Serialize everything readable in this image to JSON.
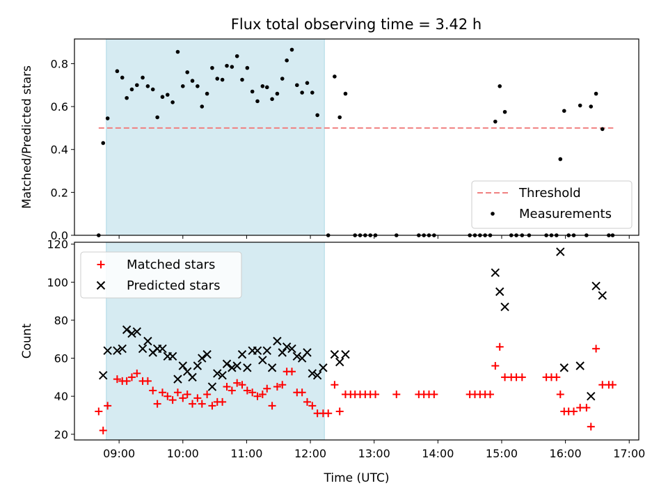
{
  "chart_data": [
    {
      "type": "scatter",
      "title": "Flux total observing time = 3.42 h",
      "xlabel": "",
      "ylabel": "Matched/Predicted stars",
      "xlim": [
        8.3,
        17.15
      ],
      "ylim": [
        0,
        0.915
      ],
      "yticks": [
        0.0,
        0.2,
        0.4,
        0.6,
        0.8
      ],
      "shaded_span": [
        8.8,
        12.22
      ],
      "shaded_color": "#add8e6",
      "legend_position": "lower right",
      "threshold": {
        "name": "Threshold",
        "y": 0.5,
        "x_range": [
          8.68,
          16.75
        ],
        "color": "#f08080"
      },
      "series": [
        {
          "name": "Measurements",
          "color": "#000000",
          "marker": "dot",
          "points": [
            [
              8.68,
              0.0
            ],
            [
              8.75,
              0.43
            ],
            [
              8.82,
              0.545
            ],
            [
              8.97,
              0.765
            ],
            [
              9.05,
              0.735
            ],
            [
              9.12,
              0.64
            ],
            [
              9.2,
              0.68
            ],
            [
              9.28,
              0.7
            ],
            [
              9.37,
              0.735
            ],
            [
              9.45,
              0.695
            ],
            [
              9.53,
              0.68
            ],
            [
              9.6,
              0.55
            ],
            [
              9.68,
              0.645
            ],
            [
              9.76,
              0.655
            ],
            [
              9.84,
              0.62
            ],
            [
              9.92,
              0.855
            ],
            [
              10.0,
              0.695
            ],
            [
              10.07,
              0.76
            ],
            [
              10.15,
              0.72
            ],
            [
              10.23,
              0.695
            ],
            [
              10.3,
              0.6
            ],
            [
              10.38,
              0.66
            ],
            [
              10.46,
              0.78
            ],
            [
              10.54,
              0.73
            ],
            [
              10.62,
              0.725
            ],
            [
              10.69,
              0.79
            ],
            [
              10.77,
              0.785
            ],
            [
              10.85,
              0.835
            ],
            [
              10.93,
              0.725
            ],
            [
              11.01,
              0.78
            ],
            [
              11.09,
              0.67
            ],
            [
              11.17,
              0.625
            ],
            [
              11.25,
              0.695
            ],
            [
              11.32,
              0.69
            ],
            [
              11.4,
              0.635
            ],
            [
              11.48,
              0.66
            ],
            [
              11.56,
              0.73
            ],
            [
              11.63,
              0.815
            ],
            [
              11.71,
              0.865
            ],
            [
              11.79,
              0.7
            ],
            [
              11.87,
              0.665
            ],
            [
              11.95,
              0.71
            ],
            [
              12.03,
              0.665
            ],
            [
              12.11,
              0.56
            ],
            [
              12.28,
              0.0
            ],
            [
              12.38,
              0.74
            ],
            [
              12.46,
              0.55
            ],
            [
              12.55,
              0.66
            ],
            [
              12.7,
              0.0
            ],
            [
              12.78,
              0.0
            ],
            [
              12.86,
              0.0
            ],
            [
              12.94,
              0.0
            ],
            [
              13.02,
              0.0
            ],
            [
              13.35,
              0.0
            ],
            [
              13.7,
              0.0
            ],
            [
              13.78,
              0.0
            ],
            [
              13.86,
              0.0
            ],
            [
              13.94,
              0.0
            ],
            [
              14.5,
              0.0
            ],
            [
              14.58,
              0.0
            ],
            [
              14.66,
              0.0
            ],
            [
              14.74,
              0.0
            ],
            [
              14.82,
              0.0
            ],
            [
              14.9,
              0.53
            ],
            [
              14.97,
              0.695
            ],
            [
              15.05,
              0.575
            ],
            [
              15.15,
              0.0
            ],
            [
              15.23,
              0.0
            ],
            [
              15.32,
              0.0
            ],
            [
              15.43,
              0.0
            ],
            [
              15.7,
              0.0
            ],
            [
              15.78,
              0.0
            ],
            [
              15.86,
              0.0
            ],
            [
              15.92,
              0.355
            ],
            [
              15.98,
              0.58
            ],
            [
              16.05,
              0.0
            ],
            [
              16.13,
              0.0
            ],
            [
              16.23,
              0.605
            ],
            [
              16.33,
              0.0
            ],
            [
              16.4,
              0.6
            ],
            [
              16.48,
              0.66
            ],
            [
              16.58,
              0.495
            ],
            [
              16.68,
              0.0
            ],
            [
              16.74,
              0.0
            ]
          ]
        }
      ]
    },
    {
      "type": "scatter",
      "title": "",
      "xlabel": "Time (UTC)",
      "ylabel": "Count",
      "xlim": [
        8.3,
        17.15
      ],
      "ylim": [
        17,
        121
      ],
      "yticks": [
        20,
        40,
        60,
        80,
        100,
        120
      ],
      "xticks": [
        9,
        10,
        11,
        12,
        13,
        14,
        15,
        16,
        17
      ],
      "xticklabels": [
        "09:00",
        "10:00",
        "11:00",
        "12:00",
        "13:00",
        "14:00",
        "15:00",
        "16:00",
        "17:00"
      ],
      "shaded_span": [
        8.8,
        12.22
      ],
      "shaded_color": "#add8e6",
      "legend_position": "upper left",
      "series": [
        {
          "name": "Matched stars",
          "color": "#ff0000",
          "marker": "plus",
          "points": [
            [
              8.68,
              32
            ],
            [
              8.75,
              22
            ],
            [
              8.82,
              35
            ],
            [
              8.97,
              49
            ],
            [
              9.05,
              48
            ],
            [
              9.12,
              48
            ],
            [
              9.2,
              50
            ],
            [
              9.28,
              52
            ],
            [
              9.37,
              48
            ],
            [
              9.45,
              48
            ],
            [
              9.53,
              43
            ],
            [
              9.6,
              36
            ],
            [
              9.68,
              42
            ],
            [
              9.76,
              40
            ],
            [
              9.84,
              38
            ],
            [
              9.92,
              42
            ],
            [
              10.0,
              39
            ],
            [
              10.07,
              41
            ],
            [
              10.15,
              36
            ],
            [
              10.23,
              39
            ],
            [
              10.3,
              36
            ],
            [
              10.38,
              41
            ],
            [
              10.46,
              35
            ],
            [
              10.54,
              37
            ],
            [
              10.62,
              37
            ],
            [
              10.69,
              45
            ],
            [
              10.77,
              43
            ],
            [
              10.85,
              47
            ],
            [
              10.93,
              46
            ],
            [
              11.01,
              43
            ],
            [
              11.09,
              42
            ],
            [
              11.17,
              40
            ],
            [
              11.25,
              41
            ],
            [
              11.32,
              44
            ],
            [
              11.4,
              35
            ],
            [
              11.48,
              45
            ],
            [
              11.56,
              46
            ],
            [
              11.63,
              53
            ],
            [
              11.71,
              53
            ],
            [
              11.79,
              42
            ],
            [
              11.87,
              42
            ],
            [
              11.95,
              37
            ],
            [
              12.03,
              35
            ],
            [
              12.11,
              31
            ],
            [
              12.2,
              31
            ],
            [
              12.28,
              31
            ],
            [
              12.38,
              46
            ],
            [
              12.46,
              32
            ],
            [
              12.55,
              41
            ],
            [
              12.63,
              41
            ],
            [
              12.7,
              41
            ],
            [
              12.78,
              41
            ],
            [
              12.86,
              41
            ],
            [
              12.94,
              41
            ],
            [
              13.02,
              41
            ],
            [
              13.35,
              41
            ],
            [
              13.7,
              41
            ],
            [
              13.78,
              41
            ],
            [
              13.86,
              41
            ],
            [
              13.94,
              41
            ],
            [
              14.5,
              41
            ],
            [
              14.58,
              41
            ],
            [
              14.66,
              41
            ],
            [
              14.74,
              41
            ],
            [
              14.82,
              41
            ],
            [
              14.9,
              56
            ],
            [
              14.97,
              66
            ],
            [
              15.05,
              50
            ],
            [
              15.15,
              50
            ],
            [
              15.23,
              50
            ],
            [
              15.32,
              50
            ],
            [
              15.7,
              50
            ],
            [
              15.78,
              50
            ],
            [
              15.86,
              50
            ],
            [
              15.92,
              41
            ],
            [
              15.98,
              32
            ],
            [
              16.05,
              32
            ],
            [
              16.13,
              32
            ],
            [
              16.23,
              34
            ],
            [
              16.33,
              34
            ],
            [
              16.4,
              24
            ],
            [
              16.48,
              65
            ],
            [
              16.58,
              46
            ],
            [
              16.68,
              46
            ],
            [
              16.74,
              46
            ]
          ]
        },
        {
          "name": "Predicted stars",
          "color": "#000000",
          "marker": "x",
          "points": [
            [
              8.75,
              51
            ],
            [
              8.82,
              64
            ],
            [
              8.97,
              64
            ],
            [
              9.05,
              65
            ],
            [
              9.12,
              75
            ],
            [
              9.2,
              73
            ],
            [
              9.28,
              74
            ],
            [
              9.37,
              65
            ],
            [
              9.45,
              69
            ],
            [
              9.53,
              63
            ],
            [
              9.6,
              65
            ],
            [
              9.68,
              65
            ],
            [
              9.76,
              61
            ],
            [
              9.84,
              61
            ],
            [
              9.92,
              49
            ],
            [
              10.0,
              56
            ],
            [
              10.07,
              53
            ],
            [
              10.15,
              50
            ],
            [
              10.23,
              56
            ],
            [
              10.3,
              60
            ],
            [
              10.38,
              62
            ],
            [
              10.46,
              45
            ],
            [
              10.54,
              52
            ],
            [
              10.62,
              51
            ],
            [
              10.69,
              57
            ],
            [
              10.77,
              55
            ],
            [
              10.85,
              56
            ],
            [
              10.93,
              62
            ],
            [
              11.01,
              55
            ],
            [
              11.09,
              64
            ],
            [
              11.17,
              64
            ],
            [
              11.25,
              59
            ],
            [
              11.32,
              64
            ],
            [
              11.4,
              55
            ],
            [
              11.48,
              69
            ],
            [
              11.56,
              63
            ],
            [
              11.63,
              66
            ],
            [
              11.71,
              65
            ],
            [
              11.79,
              61
            ],
            [
              11.87,
              60
            ],
            [
              11.95,
              63
            ],
            [
              12.03,
              52
            ],
            [
              12.11,
              51
            ],
            [
              12.2,
              55
            ],
            [
              12.38,
              62
            ],
            [
              12.46,
              58
            ],
            [
              12.55,
              62
            ],
            [
              14.9,
              105
            ],
            [
              14.97,
              95
            ],
            [
              15.05,
              87
            ],
            [
              15.92,
              116
            ],
            [
              15.98,
              55
            ],
            [
              16.23,
              56
            ],
            [
              16.4,
              40
            ],
            [
              16.48,
              98
            ],
            [
              16.58,
              93
            ]
          ]
        }
      ]
    }
  ]
}
